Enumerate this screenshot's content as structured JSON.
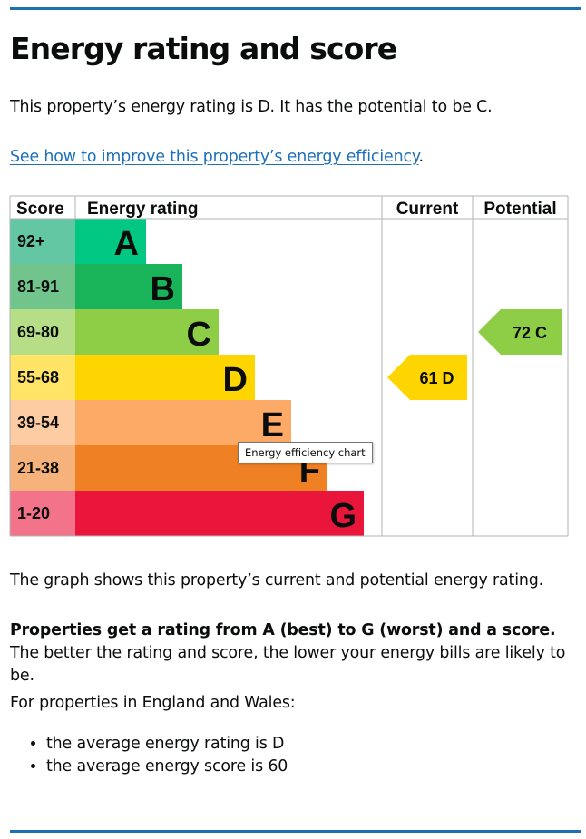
{
  "page": {
    "heading": "Energy rating and score",
    "intro": "This property’s energy rating is D. It has the potential to be C.",
    "improve_link": "See how to improve this property’s energy efficiency",
    "improve_link_suffix": ".",
    "graph_caption": "The graph shows this property’s current and potential energy rating.",
    "rating_bold": "Properties get a rating from A (best) to G (worst) and a score.",
    "rating_rest": " The better the rating and score, the lower your energy bills are likely to be.",
    "region_intro": "For properties in England and Wales:",
    "bullets": [
      "the average energy rating is D",
      "the average energy score is 60"
    ],
    "tooltip": "Energy efficiency chart"
  },
  "chart_data": {
    "type": "bar",
    "columns": {
      "score": "Score",
      "rating": "Energy rating",
      "current": "Current",
      "potential": "Potential"
    },
    "bands": [
      {
        "letter": "A",
        "range": "92+",
        "color": "#00c781",
        "score_bg": "#64c7a4"
      },
      {
        "letter": "B",
        "range": "81-91",
        "color": "#19b459",
        "score_bg": "#72c48d"
      },
      {
        "letter": "C",
        "range": "69-80",
        "color": "#8dce46",
        "score_bg": "#b5de86"
      },
      {
        "letter": "D",
        "range": "55-68",
        "color": "#ffd500",
        "score_bg": "#ffe466"
      },
      {
        "letter": "E",
        "range": "39-54",
        "color": "#fcaa65",
        "score_bg": "#fdcca3"
      },
      {
        "letter": "F",
        "range": "21-38",
        "color": "#ef8023",
        "score_bg": "#f5b37b"
      },
      {
        "letter": "G",
        "range": "1-20",
        "color": "#e9153b",
        "score_bg": "#f2738a"
      }
    ],
    "current": {
      "score": 61,
      "letter": "D",
      "label": "61 D",
      "color": "#ffd500"
    },
    "potential": {
      "score": 72,
      "letter": "C",
      "label": "72 C",
      "color": "#8dce46"
    }
  }
}
